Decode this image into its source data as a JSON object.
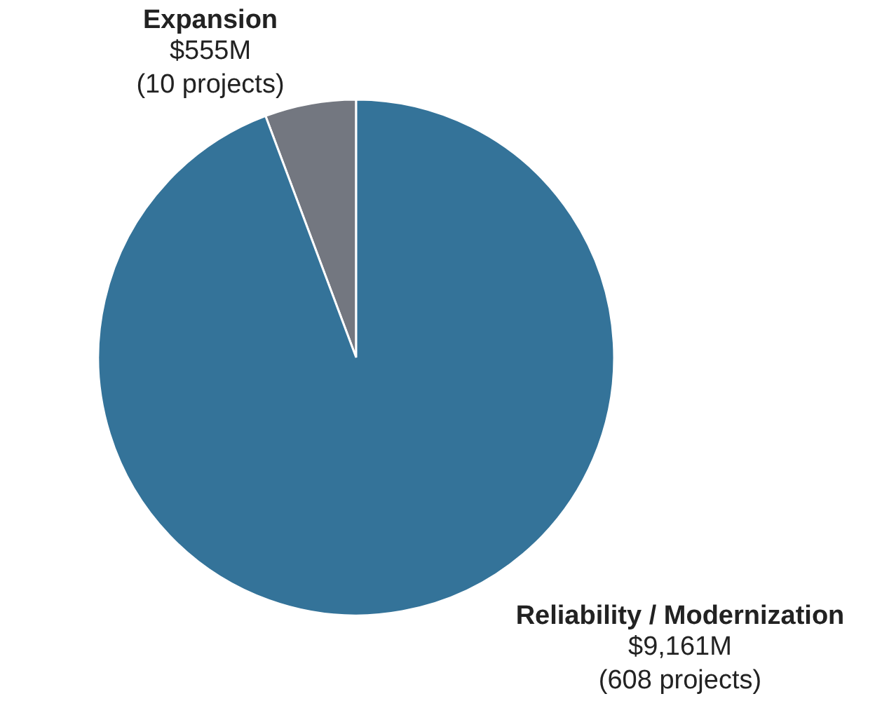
{
  "chart_data": {
    "type": "pie",
    "categories": [
      "Expansion",
      "Reliability / Modernization"
    ],
    "values": [
      555,
      9161
    ],
    "colors": [
      "#737780",
      "#347399"
    ],
    "value_labels": [
      "$555M",
      "$9,161M"
    ],
    "annotations": [
      "(10 projects)",
      "(608 projects)"
    ]
  }
}
